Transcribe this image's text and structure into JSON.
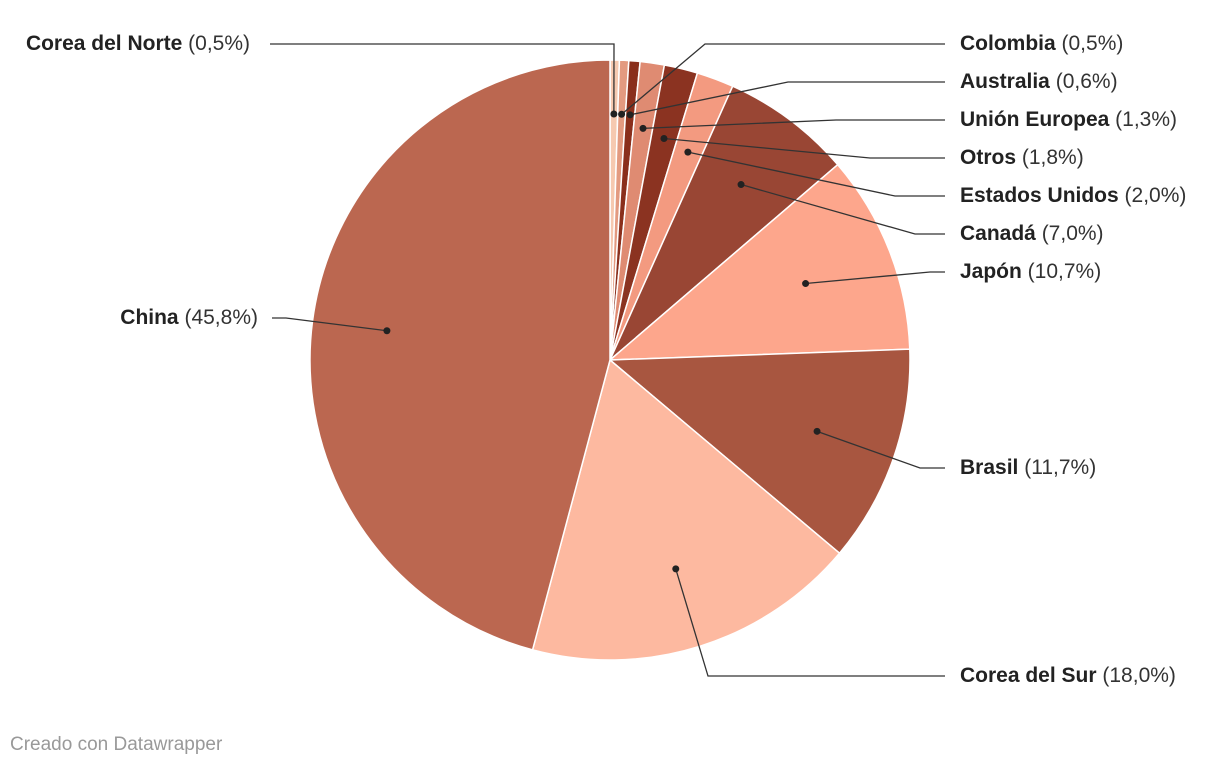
{
  "chart_data": {
    "type": "pie",
    "title": "",
    "start_angle_deg": 0,
    "direction": "clockwise",
    "slices": [
      {
        "name": "Corea del Norte",
        "value": 0.5,
        "pct_label": "(0,5%)",
        "color": "#f6c9b0"
      },
      {
        "name": "Colombia",
        "value": 0.5,
        "pct_label": "(0,5%)",
        "color": "#e39a80"
      },
      {
        "name": "Australia",
        "value": 0.6,
        "pct_label": "(0,6%)",
        "color": "#8a2f1c"
      },
      {
        "name": "Unión Europea",
        "value": 1.3,
        "pct_label": "(1,3%)",
        "color": "#df8b72"
      },
      {
        "name": "Otros",
        "value": 1.8,
        "pct_label": "(1,8%)",
        "color": "#8b3321"
      },
      {
        "name": "Estados Unidos",
        "value": 2.0,
        "pct_label": "(2,0%)",
        "color": "#f39a80"
      },
      {
        "name": "Canadá",
        "value": 7.0,
        "pct_label": "(7,0%)",
        "color": "#994634"
      },
      {
        "name": "Japón",
        "value": 10.7,
        "pct_label": "(10,7%)",
        "color": "#fda68c"
      },
      {
        "name": "Brasil",
        "value": 11.7,
        "pct_label": "(11,7%)",
        "color": "#a85640"
      },
      {
        "name": "Corea del Sur",
        "value": 18.0,
        "pct_label": "(18,0%)",
        "color": "#fdb9a0"
      },
      {
        "name": "China",
        "value": 45.8,
        "pct_label": "(45,8%)",
        "color": "#bb6750"
      }
    ]
  },
  "footer": {
    "credit": "Creado con Datawrapper"
  }
}
